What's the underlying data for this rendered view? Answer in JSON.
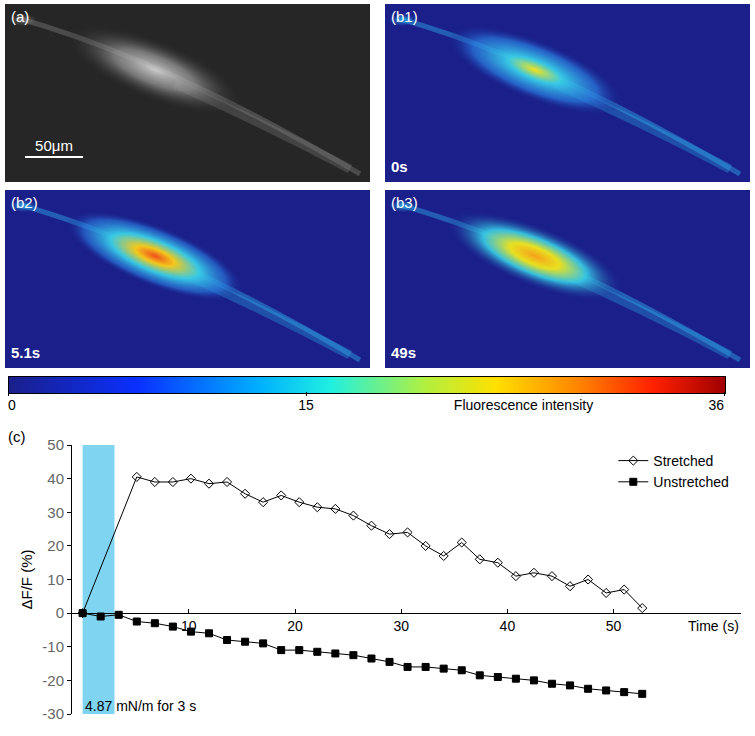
{
  "panels": [
    {
      "label": "(a)",
      "scale_bar": "50μm"
    },
    {
      "label": "(b1)",
      "time": "0s"
    },
    {
      "label": "(b2)",
      "time": "5.1s"
    },
    {
      "label": "(b3)",
      "time": "49s"
    }
  ],
  "colorbar": {
    "title": "Fluorescence intensity",
    "range": [
      0,
      36
    ],
    "ticks": [
      0,
      15,
      36
    ]
  },
  "chart_data": {
    "label": "(c)",
    "type": "line",
    "xlabel": "Time (s)",
    "ylabel": "ΔF/F (%)",
    "xlim": [
      -1,
      62
    ],
    "xticks": [
      10,
      20,
      30,
      40,
      50
    ],
    "ylim": [
      -30,
      50
    ],
    "yticks": [
      -30,
      -20,
      -10,
      0,
      10,
      20,
      30,
      40,
      50
    ],
    "legend": "top right",
    "series": [
      {
        "name": "Stretched",
        "marker": "diamond-open",
        "color": "#000000",
        "x": [
          0,
          5.1,
          6.8,
          8.5,
          10.2,
          11.9,
          13.6,
          15.3,
          17.0,
          18.7,
          20.4,
          22.1,
          23.8,
          25.5,
          27.2,
          28.9,
          30.6,
          32.3,
          34.0,
          35.7,
          37.4,
          39.1,
          40.8,
          42.5,
          44.2,
          45.9,
          47.6,
          49.3,
          51.0,
          52.7
        ],
        "values": [
          0,
          40.5,
          39,
          39,
          40,
          38.5,
          39,
          35.5,
          33,
          35,
          33,
          31.5,
          31,
          29,
          26,
          23.5,
          24,
          20,
          17,
          21,
          16,
          15,
          11,
          12,
          11,
          8,
          10,
          6,
          7,
          1.5
        ]
      },
      {
        "name": "Unstretched",
        "marker": "square",
        "color": "#000000",
        "x": [
          0,
          1.7,
          3.4,
          5.1,
          6.8,
          8.5,
          10.2,
          11.9,
          13.6,
          15.3,
          17.0,
          18.7,
          20.4,
          22.1,
          23.8,
          25.5,
          27.2,
          28.9,
          30.6,
          32.3,
          34.0,
          35.7,
          37.4,
          39.1,
          40.8,
          42.5,
          44.2,
          45.9,
          47.6,
          49.3,
          51.0,
          52.7
        ],
        "values": [
          0,
          -1,
          -0.5,
          -2.5,
          -3,
          -4,
          -5.5,
          -6,
          -8,
          -8.5,
          -9,
          -11,
          -11,
          -11.5,
          -12,
          -12.5,
          -13.5,
          -14.5,
          -16,
          -16,
          -16.5,
          -17,
          -18.5,
          -19,
          -19.5,
          -20,
          -21,
          -21.5,
          -22.5,
          -23,
          -23.5,
          -24
        ]
      }
    ],
    "annotations": [
      {
        "x0": 0,
        "x1": 3,
        "text": "4.87 mN/m for 3 s",
        "color": "#7fd4f2"
      }
    ]
  }
}
